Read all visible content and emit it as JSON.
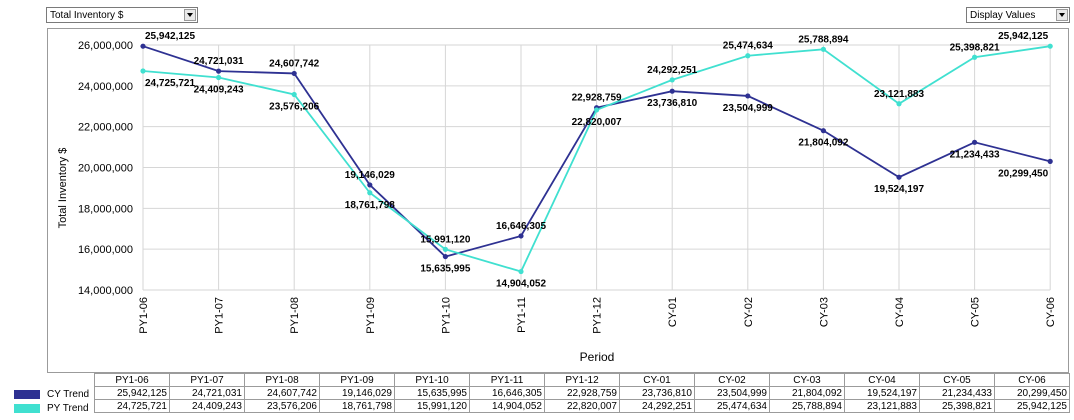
{
  "controls": {
    "measure_select": "Total Inventory $",
    "display_select": "Display Values"
  },
  "colors": {
    "cy": "#2e3192",
    "py": "#40e0d0"
  },
  "chart_data": {
    "type": "line",
    "categories": [
      "PY1-06",
      "PY1-07",
      "PY1-08",
      "PY1-09",
      "PY1-10",
      "PY1-11",
      "PY1-12",
      "CY-01",
      "CY-02",
      "CY-03",
      "CY-04",
      "CY-05",
      "CY-06"
    ],
    "series": [
      {
        "name": "CY Trend",
        "values": [
          25942125,
          24721031,
          24607742,
          19146029,
          15635995,
          16646305,
          22928759,
          23736810,
          23504999,
          21804092,
          19524197,
          21234433,
          20299450
        ]
      },
      {
        "name": "PY Trend",
        "values": [
          24725721,
          24409243,
          23576206,
          18761798,
          15991120,
          14904052,
          22820007,
          24292251,
          25474634,
          25788894,
          23121883,
          25398821,
          25942125
        ]
      }
    ],
    "xlabel": "Period",
    "ylabel": "Total Inventory $",
    "ylim": [
      14000000,
      26000000
    ],
    "yticks": [
      "14,000,000",
      "16,000,000",
      "18,000,000",
      "20,000,000",
      "22,000,000",
      "24,000,000",
      "26,000,000"
    ],
    "grid": true
  },
  "table": {
    "headers": [
      "PY1-06",
      "PY1-07",
      "PY1-08",
      "PY1-09",
      "PY1-10",
      "PY1-11",
      "PY1-12",
      "CY-01",
      "CY-02",
      "CY-03",
      "CY-04",
      "CY-05",
      "CY-06"
    ],
    "rows": [
      {
        "label": "CY Trend",
        "values": [
          "25,942,125",
          "24,721,031",
          "24,607,742",
          "19,146,029",
          "15,635,995",
          "16,646,305",
          "22,928,759",
          "23,736,810",
          "23,504,999",
          "21,804,092",
          "19,524,197",
          "21,234,433",
          "20,299,450"
        ]
      },
      {
        "label": "PY Trend",
        "values": [
          "24,725,721",
          "24,409,243",
          "23,576,206",
          "18,761,798",
          "15,991,120",
          "14,904,052",
          "22,820,007",
          "24,292,251",
          "25,474,634",
          "25,788,894",
          "23,121,883",
          "25,398,821",
          "25,942,125"
        ]
      }
    ]
  }
}
